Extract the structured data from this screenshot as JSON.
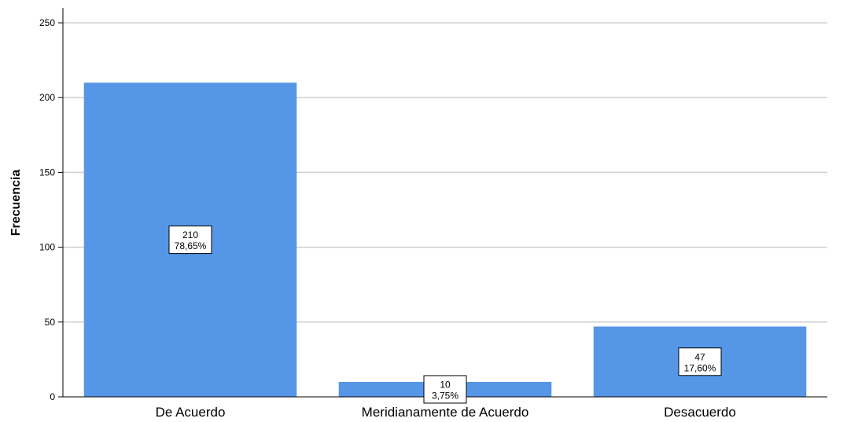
{
  "chart_data": {
    "type": "bar",
    "title": "",
    "xlabel": "",
    "ylabel": "Frecuencia",
    "categories": [
      "De Acuerdo",
      "Meridianamente de Acuerdo",
      "Desacuerdo"
    ],
    "values": [
      210,
      10,
      47
    ],
    "percent_labels": [
      "78,65%",
      "3,75%",
      "17,60%"
    ],
    "ylim": [
      0,
      260
    ],
    "yticks": [
      0,
      50,
      100,
      150,
      200,
      250
    ],
    "grid": true,
    "legend": "none",
    "bar_color": "#5596E6"
  }
}
